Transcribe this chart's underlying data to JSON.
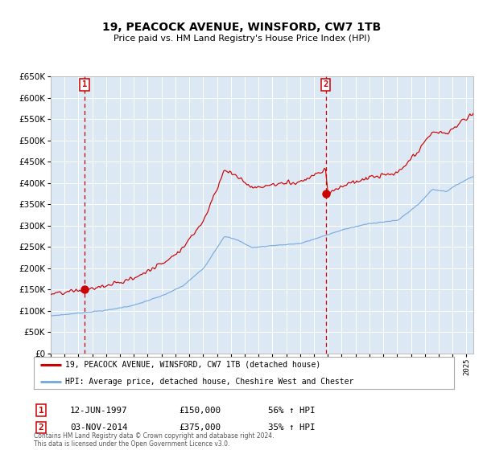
{
  "title": "19, PEACOCK AVENUE, WINSFORD, CW7 1TB",
  "subtitle": "Price paid vs. HM Land Registry's House Price Index (HPI)",
  "legend_line1": "19, PEACOCK AVENUE, WINSFORD, CW7 1TB (detached house)",
  "legend_line2": "HPI: Average price, detached house, Cheshire West and Chester",
  "annotation1_date": "12-JUN-1997",
  "annotation1_price": "£150,000",
  "annotation1_hpi": "56% ↑ HPI",
  "annotation1_year": 1997.45,
  "annotation1_value": 150000,
  "annotation2_date": "03-NOV-2014",
  "annotation2_price": "£375,000",
  "annotation2_hpi": "35% ↑ HPI",
  "annotation2_year": 2014.84,
  "annotation2_value": 375000,
  "ylim": [
    0,
    650000
  ],
  "xlim_start": 1995.0,
  "xlim_end": 2025.5,
  "fig_bg": "#ffffff",
  "plot_bg": "#dce9f5",
  "red_color": "#cc0000",
  "blue_color": "#7aace0",
  "grid_color": "#ffffff",
  "footer": "Contains HM Land Registry data © Crown copyright and database right 2024.\nThis data is licensed under the Open Government Licence v3.0."
}
